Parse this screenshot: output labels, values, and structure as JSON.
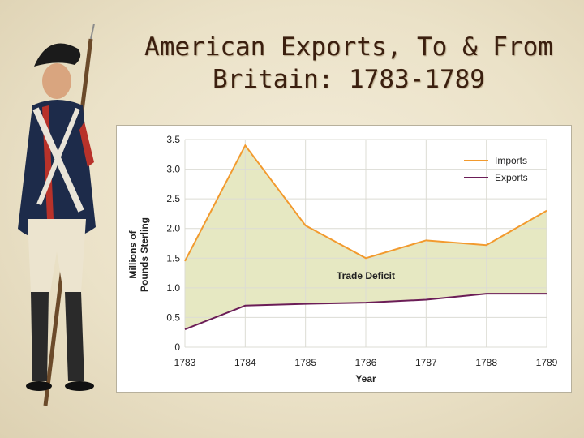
{
  "title": "American Exports, To & From Britain: 1783-1789",
  "chart_data": {
    "type": "area",
    "x": [
      1783,
      1784,
      1785,
      1786,
      1787,
      1788,
      1789
    ],
    "categories": [
      "1783",
      "1784",
      "1785",
      "1786",
      "1787",
      "1788",
      "1789"
    ],
    "series": [
      {
        "name": "Imports",
        "color": "#f29a2e",
        "values": [
          1.45,
          3.4,
          2.05,
          1.5,
          1.8,
          1.72,
          2.3
        ]
      },
      {
        "name": "Exports",
        "color": "#6b1d57",
        "values": [
          0.3,
          0.7,
          0.73,
          0.75,
          0.8,
          0.9,
          0.9
        ]
      }
    ],
    "fill_between_label": "Trade Deficit",
    "fill_color": "#e6e8c2",
    "xlabel": "Year",
    "ylabel": [
      "Millions of",
      "Pounds Sterling"
    ],
    "ylim": [
      0,
      3.5
    ],
    "yticks": [
      0,
      0.5,
      1.0,
      1.5,
      2.0,
      2.5,
      3.0,
      3.5
    ],
    "ytick_labels": [
      "0",
      "0.5",
      "1.0",
      "1.5",
      "2.0",
      "2.5",
      "3.0",
      "3.5"
    ],
    "grid": true,
    "legend_position": "top-right"
  }
}
